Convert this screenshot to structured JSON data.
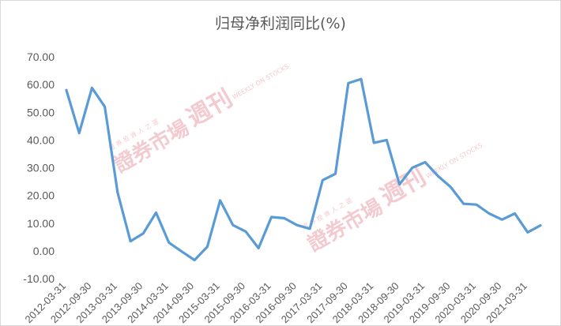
{
  "chart_data": {
    "type": "line",
    "title": "归母净利润同比(%)",
    "xlabel": "",
    "ylabel": "",
    "ylim": [
      -10,
      70
    ],
    "yticks": [
      "70.00",
      "60.00",
      "50.00",
      "40.00",
      "30.00",
      "20.00",
      "10.00",
      "0.00",
      "-10.00"
    ],
    "grid": false,
    "legend": "none",
    "x_tick_labels": [
      "2012-03-31",
      "2012-09-30",
      "2013-03-31",
      "2013-09-30",
      "2014-03-31",
      "2014-09-30",
      "2015-03-31",
      "2015-09-30",
      "2016-03-31",
      "2016-09-30",
      "2017-03-31",
      "2017-09-30",
      "2018-03-31",
      "2018-09-30",
      "2019-03-31",
      "2019-09-30",
      "2020-03-31",
      "2020-09-30",
      "2021-03-31"
    ],
    "x": [
      "2012-03-31",
      "2012-06-30",
      "2012-09-30",
      "2012-12-31",
      "2013-03-31",
      "2013-06-30",
      "2013-09-30",
      "2013-12-31",
      "2014-03-31",
      "2014-06-30",
      "2014-09-30",
      "2014-12-31",
      "2015-03-31",
      "2015-06-30",
      "2015-09-30",
      "2015-12-31",
      "2016-03-31",
      "2016-06-30",
      "2016-09-30",
      "2016-12-31",
      "2017-03-31",
      "2017-06-30",
      "2017-09-30",
      "2017-12-31",
      "2018-03-31",
      "2018-06-30",
      "2018-09-30",
      "2018-12-31",
      "2019-03-31",
      "2019-06-30",
      "2019-09-30",
      "2019-12-31",
      "2020-03-31",
      "2020-06-30",
      "2020-09-30",
      "2020-12-31",
      "2021-03-31",
      "2021-06-30"
    ],
    "series": [
      {
        "values": [
          58.0,
          42.5,
          58.8,
          52.0,
          21.0,
          3.5,
          6.3,
          13.8,
          3.0,
          -0.2,
          -3.3,
          1.5,
          18.2,
          9.3,
          7.0,
          1.0,
          12.2,
          11.8,
          9.3,
          8.0,
          25.5,
          27.8,
          60.5,
          62.0,
          39.0,
          40.0,
          24.0,
          30.0,
          32.0,
          27.0,
          23.0,
          17.0,
          16.7,
          13.5,
          11.3,
          13.5,
          6.7,
          9.2
        ],
        "color": "#5b9bd5"
      }
    ],
    "watermark": {
      "main": "證券市場",
      "tag": "週刊",
      "sub": "證 券 投 資 人 之 選",
      "en": "WEEKLY ON STOCKS"
    }
  }
}
